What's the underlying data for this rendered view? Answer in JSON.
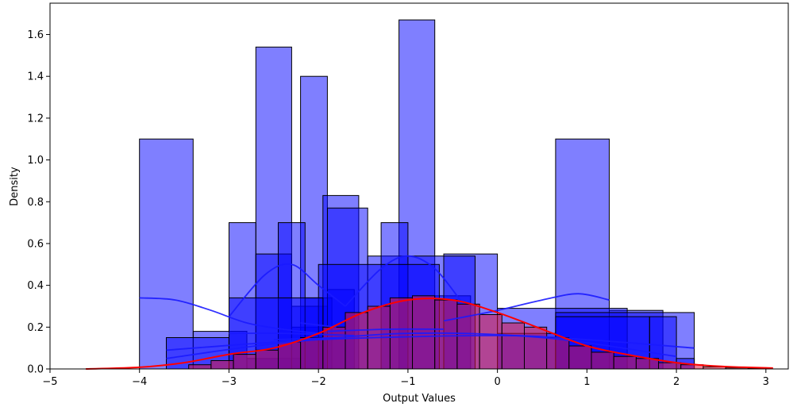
{
  "chart_data": {
    "type": "histogram",
    "title": "",
    "xlabel": "Output Values",
    "ylabel": "Density",
    "xlim": [
      -5,
      3.25
    ],
    "ylim": [
      0,
      1.75
    ],
    "x_ticks": [
      -5,
      -4,
      -3,
      -2,
      -1,
      0,
      1,
      2,
      3
    ],
    "x_tick_labels": [
      "−5",
      "−4",
      "−3",
      "−2",
      "−1",
      "0",
      "1",
      "2",
      "3"
    ],
    "y_ticks": [
      0.0,
      0.2,
      0.4,
      0.6,
      0.8,
      1.0,
      1.2,
      1.4,
      1.6
    ],
    "y_tick_labels": [
      "0.0",
      "0.2",
      "0.4",
      "0.6",
      "0.8",
      "1.0",
      "1.2",
      "1.4",
      "1.6"
    ],
    "grid": false,
    "colors": {
      "blue_fill": "#0000ff",
      "blue_line": "#1a1aff",
      "red_fill": "#dc143c",
      "red_line": "#ff0000",
      "edge": "#000000"
    },
    "series": [
      {
        "color": "blue",
        "bins": [
          [
            -4.0,
            -3.4,
            1.1
          ],
          [
            -3.4,
            -2.8,
            0.18
          ],
          [
            -2.8,
            -2.2,
            0.05
          ]
        ],
        "kde": [
          [
            -4.0,
            0.34
          ],
          [
            -3.6,
            0.33
          ],
          [
            -3.2,
            0.28
          ],
          [
            -2.8,
            0.22
          ],
          [
            -2.4,
            0.19
          ],
          [
            -2.0,
            0.17
          ]
        ]
      },
      {
        "color": "blue",
        "bins": [
          [
            -2.7,
            -2.3,
            1.54
          ],
          [
            -2.3,
            -1.9,
            0.2
          ]
        ],
        "kde": [
          [
            -3.0,
            0.25
          ],
          [
            -2.6,
            0.45
          ],
          [
            -2.3,
            0.5
          ],
          [
            -2.0,
            0.4
          ],
          [
            -1.7,
            0.3
          ]
        ]
      },
      {
        "color": "blue",
        "bins": [
          [
            -2.2,
            -1.9,
            1.4
          ],
          [
            -1.9,
            -1.6,
            0.38
          ]
        ],
        "kde": [
          [
            -2.2,
            0.22
          ],
          [
            -2.0,
            0.21
          ],
          [
            -1.8,
            0.2
          ]
        ]
      },
      {
        "color": "blue",
        "bins": [
          [
            -1.1,
            -0.7,
            1.67
          ],
          [
            -0.7,
            -0.3,
            0.35
          ]
        ],
        "kde": [
          [
            -1.7,
            0.3
          ],
          [
            -1.3,
            0.48
          ],
          [
            -1.0,
            0.54
          ],
          [
            -0.7,
            0.48
          ],
          [
            -0.4,
            0.32
          ]
        ]
      },
      {
        "color": "blue",
        "bins": [
          [
            0.65,
            1.25,
            1.1
          ],
          [
            1.25,
            1.85,
            0.28
          ]
        ],
        "kde": [
          [
            -0.6,
            0.23
          ],
          [
            0.0,
            0.28
          ],
          [
            0.5,
            0.33
          ],
          [
            0.9,
            0.36
          ],
          [
            1.25,
            0.33
          ]
        ]
      },
      {
        "color": "blue",
        "bins": [
          [
            -3.0,
            -2.7,
            0.7
          ],
          [
            -2.7,
            -2.3,
            0.55
          ],
          [
            -2.3,
            -1.9,
            0.3
          ]
        ],
        "kde": [
          [
            -3.0,
            0.17
          ],
          [
            -2.4,
            0.17
          ],
          [
            -1.6,
            0.16
          ]
        ]
      },
      {
        "color": "blue",
        "bins": [
          [
            -2.45,
            -2.15,
            0.7
          ],
          [
            -2.15,
            -1.85,
            0.34
          ]
        ],
        "kde": [
          [
            -2.5,
            0.14
          ],
          [
            -1.8,
            0.15
          ]
        ]
      },
      {
        "color": "blue",
        "bins": [
          [
            -1.95,
            -1.55,
            0.83
          ],
          [
            -1.9,
            -1.45,
            0.77
          ],
          [
            -1.45,
            -0.6,
            0.54
          ]
        ],
        "kde": [
          [
            -1.9,
            0.18
          ],
          [
            -1.2,
            0.19
          ],
          [
            -0.6,
            0.19
          ]
        ]
      },
      {
        "color": "blue",
        "bins": [
          [
            -1.3,
            -1.0,
            0.7
          ],
          [
            -2.0,
            -0.65,
            0.5
          ],
          [
            -0.6,
            0.0,
            0.55
          ],
          [
            -0.6,
            -0.25,
            0.54
          ],
          [
            0.0,
            1.45,
            0.29
          ],
          [
            0.65,
            2.2,
            0.27
          ]
        ],
        "kde": [
          [
            -3.7,
            0.09
          ],
          [
            -2.0,
            0.14
          ],
          [
            0.0,
            0.16
          ],
          [
            1.0,
            0.14
          ],
          [
            2.2,
            0.1
          ]
        ]
      },
      {
        "color": "blue",
        "bins": [
          [
            -3.7,
            -3.0,
            0.15
          ],
          [
            -3.0,
            -1.95,
            0.34
          ],
          [
            0.0,
            0.65,
            0.17
          ],
          [
            0.65,
            1.7,
            0.25
          ],
          [
            1.7,
            2.0,
            0.25
          ],
          [
            2.0,
            2.2,
            0.05
          ]
        ],
        "kde": [
          [
            -3.7,
            0.05
          ],
          [
            -2.5,
            0.12
          ],
          [
            -1.0,
            0.17
          ],
          [
            0.5,
            0.15
          ],
          [
            2.0,
            0.06
          ]
        ]
      },
      {
        "color": "red",
        "bins": [
          [
            -4.6,
            -4.35,
            0.0
          ],
          [
            -3.45,
            -3.2,
            0.02
          ],
          [
            -3.2,
            -2.95,
            0.04
          ],
          [
            -2.95,
            -2.7,
            0.07
          ],
          [
            -2.7,
            -2.45,
            0.09
          ],
          [
            -2.45,
            -2.2,
            0.13
          ],
          [
            -2.2,
            -1.95,
            0.15
          ],
          [
            -1.95,
            -1.7,
            0.2
          ],
          [
            -1.7,
            -1.45,
            0.27
          ],
          [
            -1.45,
            -1.2,
            0.3
          ],
          [
            -1.2,
            -0.95,
            0.34
          ],
          [
            -0.95,
            -0.7,
            0.35
          ],
          [
            -0.7,
            -0.45,
            0.33
          ],
          [
            -0.45,
            -0.2,
            0.31
          ],
          [
            -0.2,
            0.05,
            0.26
          ],
          [
            0.05,
            0.3,
            0.22
          ],
          [
            0.3,
            0.55,
            0.2
          ],
          [
            0.55,
            0.8,
            0.15
          ],
          [
            0.8,
            1.05,
            0.11
          ],
          [
            1.05,
            1.3,
            0.08
          ],
          [
            1.3,
            1.55,
            0.06
          ],
          [
            1.55,
            1.8,
            0.05
          ],
          [
            1.8,
            2.05,
            0.03
          ],
          [
            2.05,
            2.3,
            0.02
          ],
          [
            2.3,
            2.55,
            0.01
          ],
          [
            2.55,
            2.8,
            0.005
          ],
          [
            2.8,
            3.05,
            0.003
          ]
        ],
        "kde": [
          [
            -4.6,
            0.0
          ],
          [
            -4.0,
            0.008
          ],
          [
            -3.5,
            0.03
          ],
          [
            -3.0,
            0.07
          ],
          [
            -2.5,
            0.1
          ],
          [
            -2.0,
            0.17
          ],
          [
            -1.5,
            0.27
          ],
          [
            -1.0,
            0.33
          ],
          [
            -0.5,
            0.33
          ],
          [
            0.0,
            0.27
          ],
          [
            0.5,
            0.19
          ],
          [
            1.0,
            0.11
          ],
          [
            1.5,
            0.065
          ],
          [
            2.0,
            0.03
          ],
          [
            2.5,
            0.012
          ],
          [
            3.08,
            0.004
          ]
        ]
      }
    ]
  }
}
